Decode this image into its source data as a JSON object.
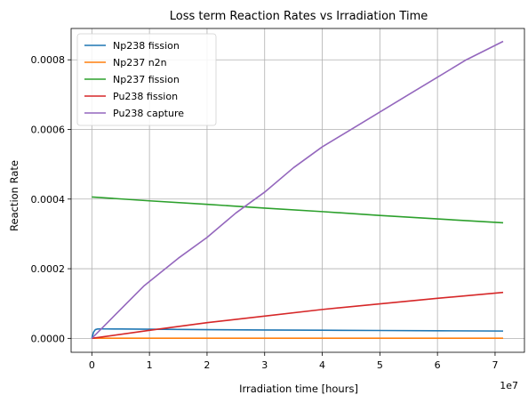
{
  "chart_data": {
    "type": "line",
    "title": "Loss term Reaction Rates vs Irradiation Time",
    "xlabel": "Irradiation time [hours]",
    "ylabel": "Reaction Rate",
    "x_multiplier_label": "1e7",
    "x_scale_factor": 10000000,
    "xlim": [
      -3600000,
      75100000
    ],
    "ylim": [
      -4e-05,
      0.00089
    ],
    "xticks": [
      0,
      10000000,
      20000000,
      30000000,
      40000000,
      50000000,
      60000000,
      70000000
    ],
    "xtick_labels": [
      "0",
      "1",
      "2",
      "3",
      "4",
      "5",
      "6",
      "7"
    ],
    "yticks": [
      0.0,
      0.0002,
      0.0004,
      0.0006,
      0.0008
    ],
    "ytick_labels": [
      "0.0000",
      "0.0002",
      "0.0004",
      "0.0006",
      "0.0008"
    ],
    "grid": true,
    "legend_position": "top-left",
    "series": [
      {
        "name": "Np238 fission",
        "color": "#1f77b4",
        "x": [
          0,
          300000,
          600000,
          1000000,
          1500000,
          2500000,
          5000000,
          10000000,
          20000000,
          30000000,
          40000000,
          50000000,
          60000000,
          71400000
        ],
        "y": [
          0.0,
          1.8e-05,
          2.5e-05,
          2.7e-05,
          2.72e-05,
          2.71e-05,
          2.68e-05,
          2.62e-05,
          2.5e-05,
          2.41e-05,
          2.33e-05,
          2.26e-05,
          2.18e-05,
          2.1e-05
        ]
      },
      {
        "name": "Np237 n2n",
        "color": "#ff7f0e",
        "x": [
          0,
          71400000
        ],
        "y": [
          3e-07,
          3e-07
        ]
      },
      {
        "name": "Np237 fission",
        "color": "#2ca02c",
        "x": [
          0,
          10000000,
          20000000,
          30000000,
          40000000,
          50000000,
          60000000,
          71400000
        ],
        "y": [
          0.000406,
          0.000395,
          0.000385,
          0.000374,
          0.000364,
          0.000353,
          0.000343,
          0.000332
        ]
      },
      {
        "name": "Pu238 fission",
        "color": "#d62728",
        "x": [
          0,
          10000000,
          20000000,
          30000000,
          40000000,
          50000000,
          60000000,
          71400000
        ],
        "y": [
          0.0,
          2.3e-05,
          4.5e-05,
          6.4e-05,
          8.3e-05,
          9.9e-05,
          0.000115,
          0.000132
        ]
      },
      {
        "name": "Pu238 capture",
        "color": "#9467bd",
        "x": [
          0,
          3000000,
          6000000,
          9000000,
          15000000,
          20000000,
          25000000,
          30000000,
          35000000,
          40000000,
          45000000,
          50000000,
          55000000,
          60000000,
          65000000,
          71400000
        ],
        "y": [
          0.0,
          5e-05,
          0.0001,
          0.00015,
          0.00023,
          0.00029,
          0.00036,
          0.00042,
          0.00049,
          0.00055,
          0.0006,
          0.00065,
          0.0007,
          0.00075,
          0.0008,
          0.000853
        ]
      }
    ]
  }
}
